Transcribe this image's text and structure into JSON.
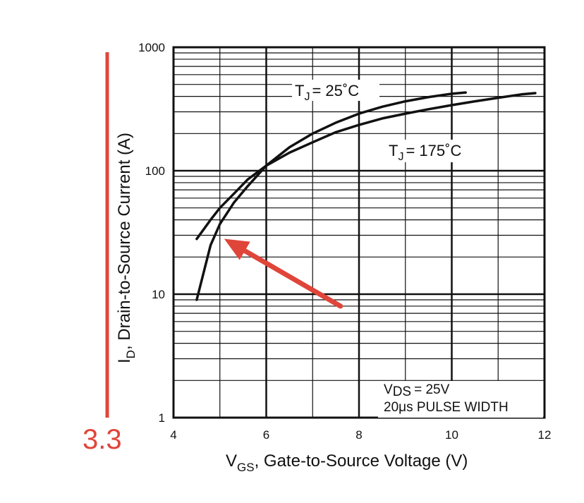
{
  "chart_data": {
    "type": "line",
    "xlabel": {
      "symbol": "V",
      "sub": "GS",
      "text": ", Gate-to-Source Voltage (V)"
    },
    "ylabel": {
      "symbol": "I",
      "sub": "D",
      "text": ",  Drain-to-Source Current (A)"
    },
    "xlim": [
      4,
      12
    ],
    "ylim": [
      1,
      1000
    ],
    "y_scale": "log",
    "grid": true,
    "x_ticks": [
      "4",
      "6",
      "8",
      "10",
      "12"
    ],
    "y_ticks": [
      "1",
      "10",
      "100",
      "1000"
    ],
    "series": [
      {
        "name": "T_J = 25°C",
        "label": {
          "main": "T",
          "sub": "J",
          "rest": "= 25˚C"
        },
        "x": [
          4.5,
          4.8,
          5.0,
          5.3,
          5.6,
          6.0,
          6.5,
          7.0,
          7.5,
          8.0,
          8.5,
          9.0,
          9.5,
          10.0,
          10.3
        ],
        "y": [
          9,
          25,
          37,
          55,
          75,
          110,
          155,
          200,
          245,
          290,
          330,
          365,
          395,
          420,
          430
        ]
      },
      {
        "name": "T_J = 175°C",
        "label": {
          "main": "T",
          "sub": "J",
          "rest": "= 175˚C"
        },
        "x": [
          4.5,
          4.8,
          5.0,
          5.3,
          5.6,
          6.0,
          6.5,
          7.0,
          7.5,
          8.0,
          8.5,
          9.0,
          9.5,
          10.0,
          10.5,
          11.0,
          11.5,
          11.8
        ],
        "y": [
          28,
          40,
          50,
          65,
          85,
          110,
          140,
          170,
          205,
          235,
          265,
          290,
          315,
          340,
          365,
          390,
          415,
          425
        ]
      }
    ],
    "notes": [
      {
        "main": "V",
        "sub": "DS",
        "rest": "= 25V"
      },
      {
        "main": "20μs PULSE WIDTH",
        "sub": "",
        "rest": ""
      }
    ]
  },
  "annotations": {
    "value_text": "3.3",
    "color": "#e0453a",
    "arrow_target": {
      "x": 5.0,
      "y": 30
    },
    "arrow_tail": {
      "x": 7.6,
      "y": 8
    }
  },
  "colors": {
    "line": "#111111",
    "annotation": "#e0453a"
  }
}
